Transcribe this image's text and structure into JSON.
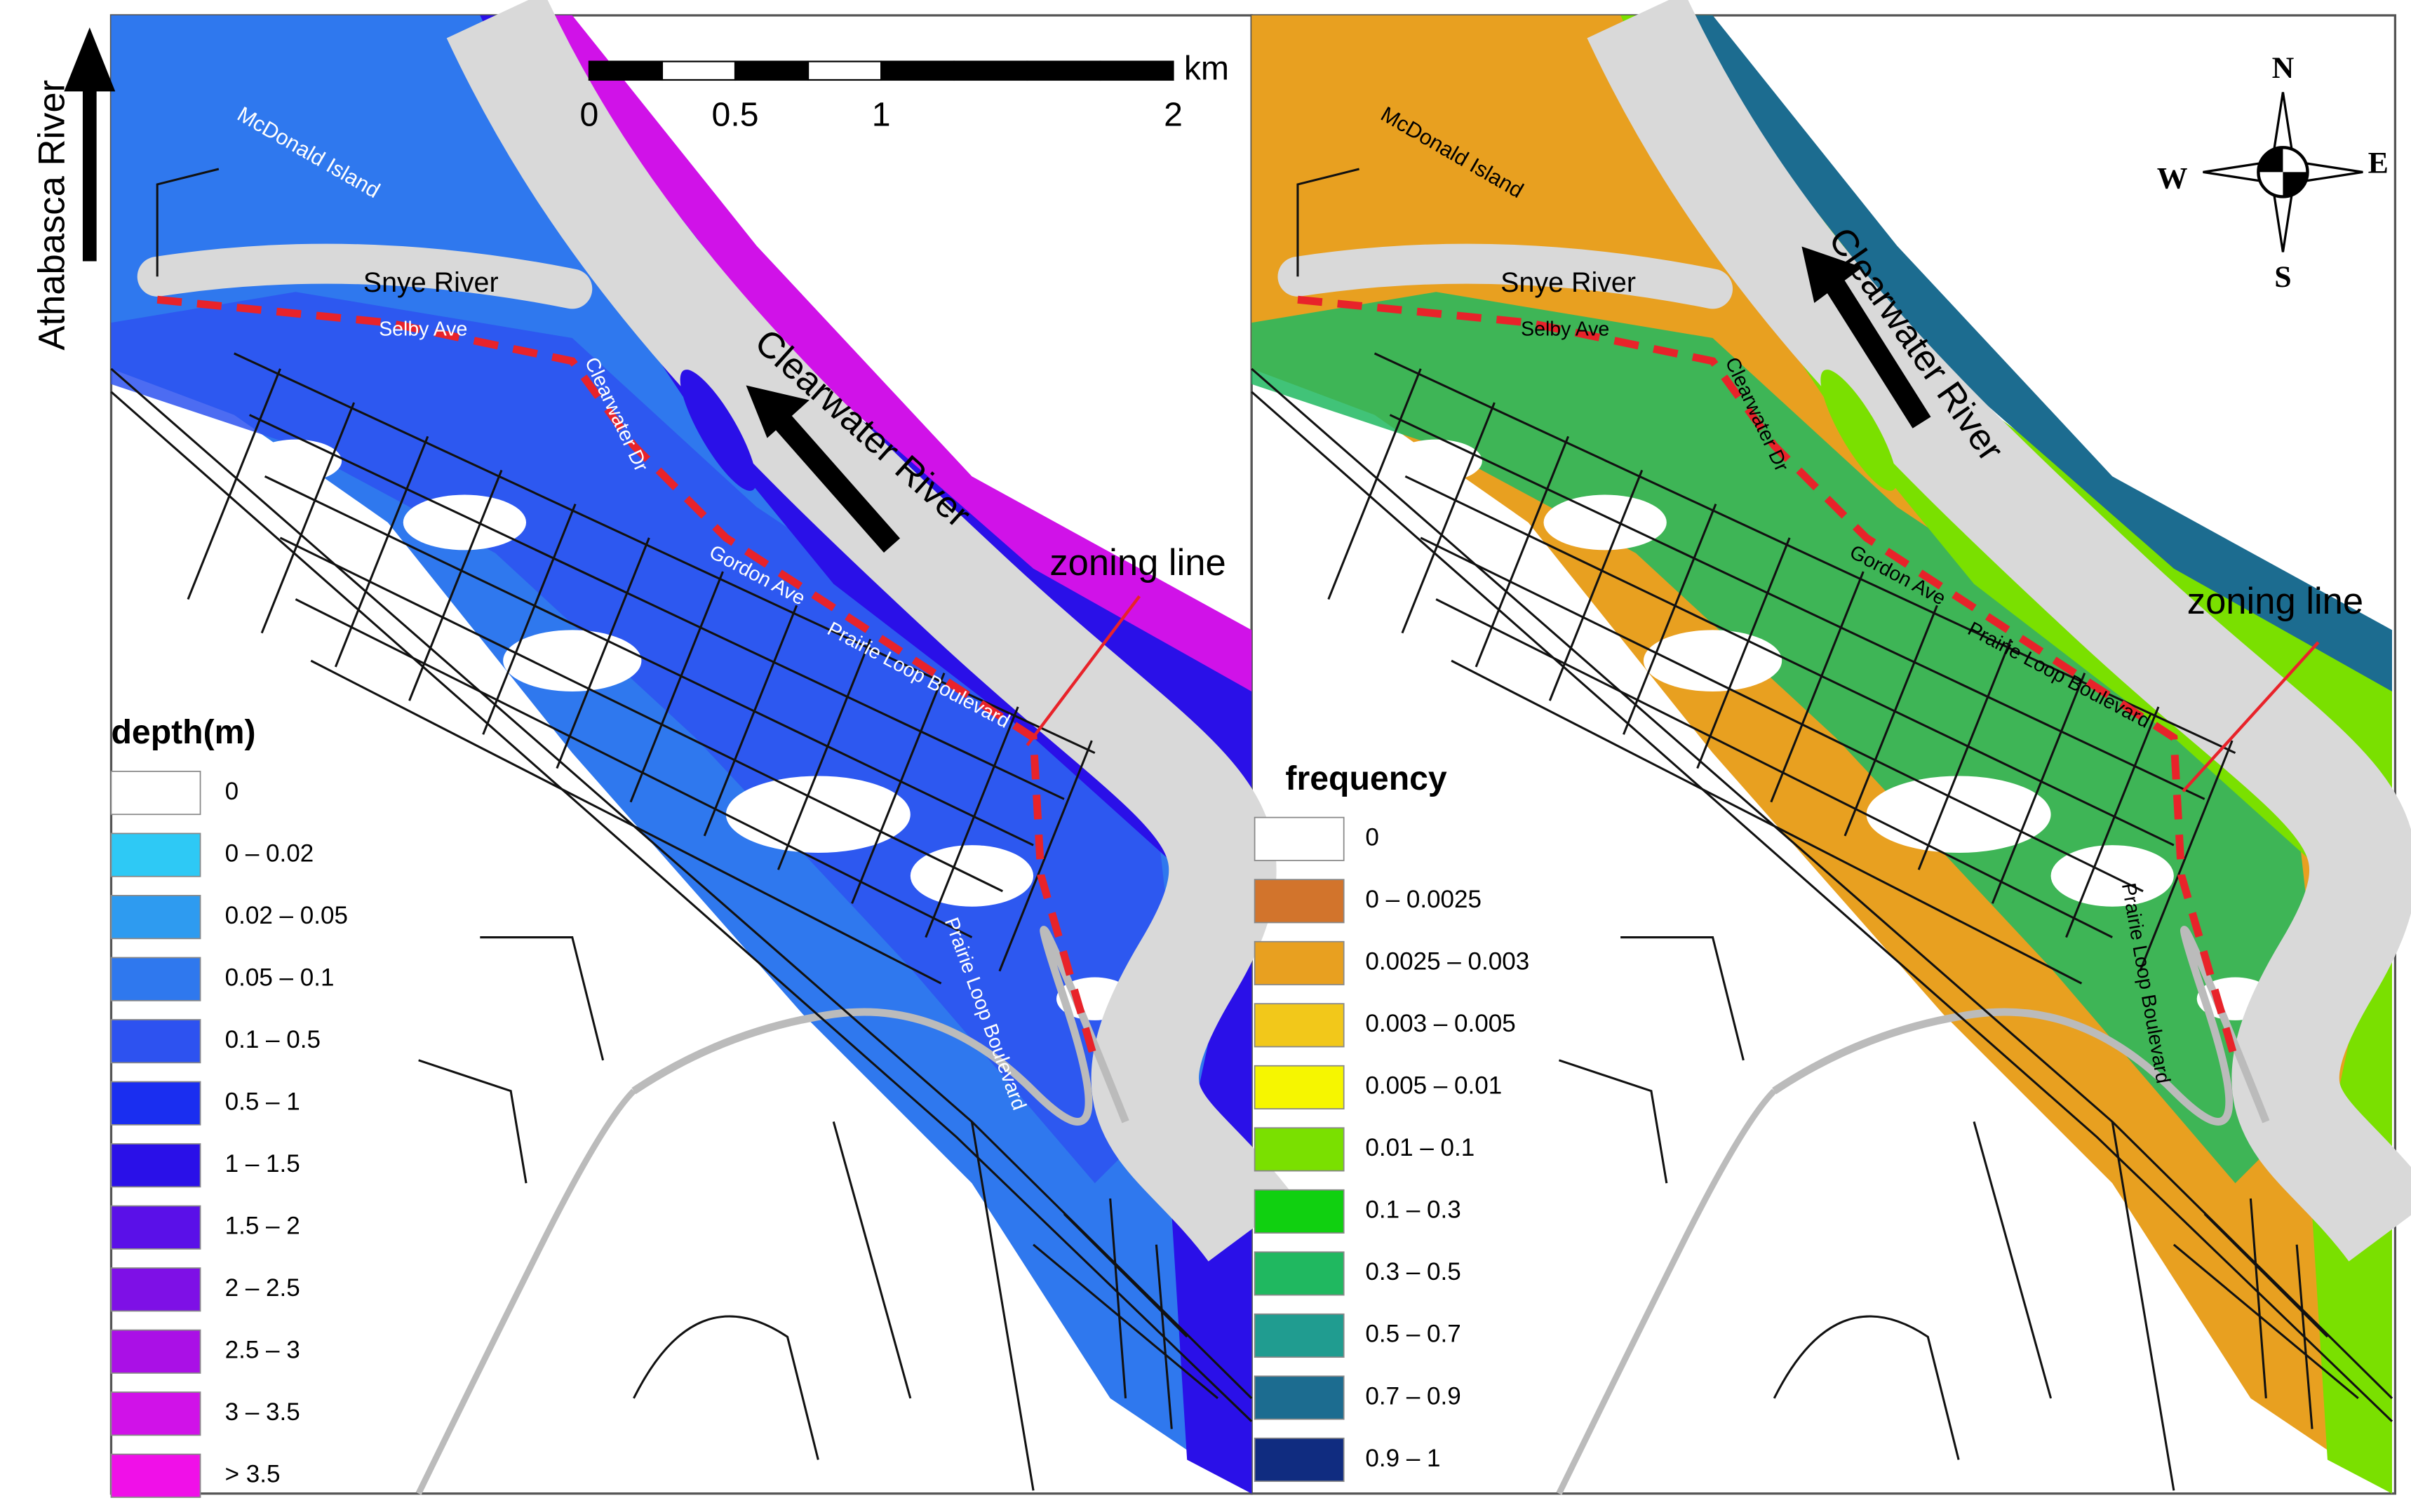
{
  "panels": [
    {
      "legend_title": "depth(m)",
      "legend": [
        {
          "label": "0",
          "color": "#ffffff"
        },
        {
          "label": "0 – 0.02",
          "color": "#2ec9f5"
        },
        {
          "label": "0.02 – 0.05",
          "color": "#2e9bf0"
        },
        {
          "label": "0.05 – 0.1",
          "color": "#2f78ee"
        },
        {
          "label": "0.1 – 0.5",
          "color": "#2d52f0"
        },
        {
          "label": "0.5 – 1",
          "color": "#1a2ef0"
        },
        {
          "label": "1 – 1.5",
          "color": "#2a10e8"
        },
        {
          "label": "1.5 – 2",
          "color": "#5a10e8"
        },
        {
          "label": "2 – 2.5",
          "color": "#7e10e6"
        },
        {
          "label": "2.5 – 3",
          "color": "#aa10e6"
        },
        {
          "label": "3 – 3.5",
          "color": "#d012e8"
        },
        {
          "label": "> 3.5",
          "color": "#f010e8"
        }
      ],
      "map_labels": [
        "Athabasca River",
        "McDonald Island",
        "Snye River",
        "Selby Ave",
        "Clearwater Dr",
        "Clearwater River",
        "Gordon Ave",
        "Prairie Loop Boulevard",
        "zoning line",
        "Prairie Loop Boulevard"
      ]
    },
    {
      "legend_title": "frequency",
      "legend": [
        {
          "label": "0",
          "color": "#ffffff"
        },
        {
          "label": "0 – 0.0025",
          "color": "#d2742c"
        },
        {
          "label": "0.0025 – 0.003",
          "color": "#e8a020"
        },
        {
          "label": "0.003 – 0.005",
          "color": "#f2c81a"
        },
        {
          "label": "0.005 – 0.01",
          "color": "#f6f600"
        },
        {
          "label": "0.01 – 0.1",
          "color": "#7ae000"
        },
        {
          "label": "0.1 – 0.3",
          "color": "#10d010"
        },
        {
          "label": "0.3 – 0.5",
          "color": "#20b860"
        },
        {
          "label": "0.5 – 0.7",
          "color": "#209c90"
        },
        {
          "label": "0.7 – 0.9",
          "color": "#1c6c90"
        },
        {
          "label": "0.9 – 1",
          "color": "#102c80"
        }
      ],
      "map_labels": [
        "McDonald Island",
        "Snye River",
        "Selby Ave",
        "Clearwater Dr",
        "Clearwater River",
        "Gordon Ave",
        "Prairie Loop Boulevard",
        "zoning line",
        "Prairie Loop Boulevard"
      ]
    }
  ],
  "scale_bar": {
    "ticks": [
      0,
      0.5,
      1,
      2
    ],
    "unit": "km"
  },
  "compass": {
    "north": "N",
    "east": "E",
    "south": "S",
    "west": "W"
  }
}
